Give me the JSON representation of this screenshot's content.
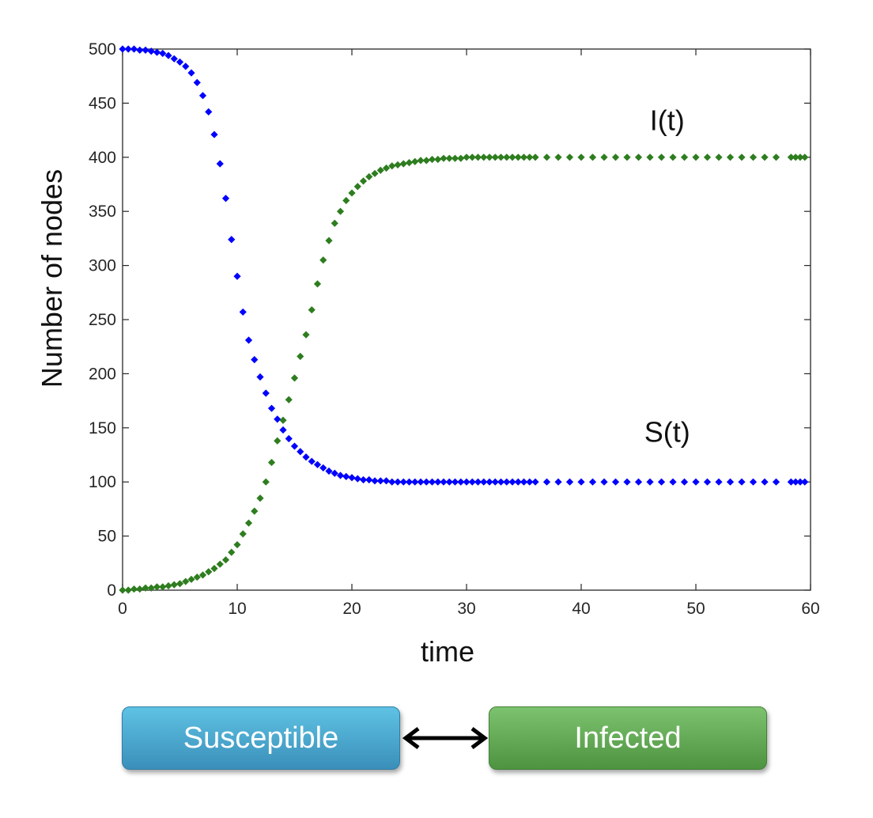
{
  "chart_data": {
    "type": "scatter",
    "title": "",
    "xlabel": "time",
    "ylabel": "Number of nodes",
    "xlim": [
      0,
      60
    ],
    "ylim": [
      0,
      500
    ],
    "xticks": [
      0,
      10,
      20,
      30,
      40,
      50,
      60
    ],
    "yticks": [
      0,
      50,
      100,
      150,
      200,
      250,
      300,
      350,
      400,
      450,
      500
    ],
    "grid": false,
    "x": [
      0,
      0.5,
      1,
      1.5,
      2,
      2.5,
      3,
      3.5,
      4,
      4.5,
      5,
      5.5,
      6,
      6.5,
      7,
      7.5,
      8,
      8.5,
      9,
      9.5,
      10,
      10.5,
      11,
      11.5,
      12,
      12.5,
      13,
      13.5,
      14,
      14.5,
      15,
      15.5,
      16,
      16.5,
      17,
      17.5,
      18,
      18.5,
      19,
      19.5,
      20,
      20.5,
      21,
      21.5,
      22,
      22.5,
      23,
      23.5,
      24,
      24.5,
      25,
      25.5,
      26,
      26.5,
      27,
      27.5,
      28,
      28.5,
      29,
      29.5,
      30,
      30.5,
      31,
      31.5,
      32,
      32.5,
      33,
      33.5,
      34,
      34.5,
      35,
      35.5,
      36,
      37,
      38,
      39,
      40,
      41,
      42,
      43,
      44,
      45,
      46,
      47,
      48,
      49,
      50,
      51,
      52,
      53,
      54,
      55,
      56,
      57,
      58.3,
      58.7,
      59.1,
      59.5,
      59.9
    ],
    "series": [
      {
        "name": "S(t)",
        "color": "#0000ff",
        "values": [
          500,
          500,
          500,
          499,
          499,
          498,
          497,
          496,
          494,
          491,
          488,
          484,
          478,
          469,
          457,
          442,
          421,
          394,
          362,
          324,
          290,
          257,
          231,
          213,
          197,
          182,
          168,
          158,
          148,
          140,
          133,
          128,
          123,
          119,
          116,
          113,
          110,
          108,
          106,
          105,
          104,
          103,
          102,
          102,
          101,
          101,
          101,
          100,
          100,
          100,
          100,
          100,
          100,
          100,
          100,
          100,
          100,
          100,
          100,
          100,
          100,
          100,
          100,
          100,
          100,
          100,
          100,
          100,
          100,
          100,
          100,
          100,
          100,
          100,
          100,
          100,
          100,
          100,
          100,
          100,
          100,
          100,
          100,
          100,
          100,
          100,
          100,
          100,
          100,
          100,
          100,
          100,
          100,
          100,
          100,
          100,
          100,
          100
        ]
      },
      {
        "name": "I(t)",
        "color": "#2e7d1f",
        "values": [
          0,
          0,
          1,
          1,
          2,
          2,
          3,
          3,
          4,
          5,
          6,
          8,
          10,
          12,
          14,
          17,
          20,
          24,
          28,
          35,
          42,
          52,
          62,
          73,
          85,
          100,
          118,
          138,
          157,
          176,
          196,
          216,
          236,
          259,
          283,
          305,
          323,
          339,
          350,
          360,
          367,
          373,
          378,
          382,
          385,
          388,
          390,
          392,
          393,
          394,
          395,
          396,
          397,
          397,
          398,
          398,
          399,
          399,
          399,
          399,
          400,
          400,
          400,
          400,
          400,
          400,
          400,
          400,
          400,
          400,
          400,
          400,
          400,
          400,
          400,
          400,
          400,
          400,
          400,
          400,
          400,
          400,
          400,
          400,
          400,
          400,
          400,
          400,
          400,
          400,
          400,
          400,
          400,
          400,
          400,
          400,
          400,
          400
        ]
      }
    ],
    "annotations": [
      {
        "text": "I(t)",
        "x": 47.5,
        "y": 425
      },
      {
        "text": "S(t)",
        "x": 47.5,
        "y": 137
      }
    ]
  },
  "diagram": {
    "left_box": "Susceptible",
    "right_box": "Infected",
    "left_color": "#4aa8d3",
    "right_color": "#62ad55",
    "arrow": "bidirectional"
  }
}
